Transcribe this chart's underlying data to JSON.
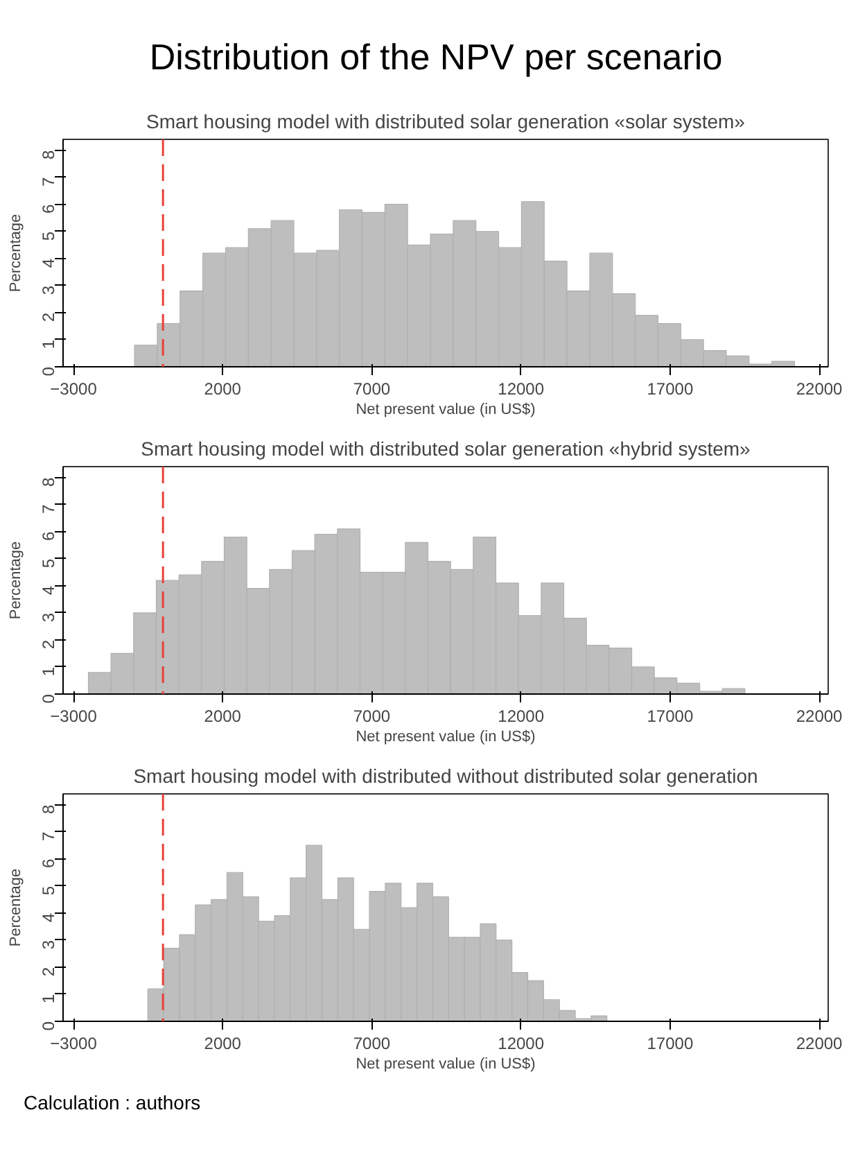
{
  "chart_data": [
    {
      "type": "histogram",
      "title": "Distribution of the NPV per scenario",
      "subtitle": "Smart housing model with distributed solar generation «solar system»",
      "xlabel": "Net present value (in US$)",
      "ylabel": "Percentage",
      "color": "#bebebe",
      "bins": [
        -954,
        -191,
        572,
        1335,
        2098,
        2861,
        3624,
        4387,
        5150,
        5913,
        6676,
        7439,
        8202,
        8965,
        9728,
        10491,
        11254,
        12017,
        12780,
        13543,
        14306,
        15069,
        15832,
        16595,
        17358,
        18121,
        18884,
        19647,
        20410,
        21173
      ],
      "values": [
        0.8,
        1.6,
        2.8,
        4.2,
        4.4,
        5.1,
        5.4,
        4.2,
        4.3,
        5.8,
        5.7,
        6.0,
        4.5,
        4.9,
        5.4,
        5.0,
        4.4,
        6.1,
        3.9,
        2.8,
        4.2,
        2.7,
        1.9,
        1.6,
        1.0,
        0.6,
        0.4,
        0.1,
        0.2
      ],
      "xlim": [
        -3350,
        22300
      ],
      "ylim": [
        0,
        8.4
      ],
      "xticks": [
        -3000,
        2000,
        7000,
        12000,
        17000,
        22000
      ],
      "yticks": [
        0,
        1,
        2,
        3,
        4,
        5,
        6,
        7,
        8
      ],
      "ref_lines": [
        {
          "axis": "x",
          "value": 0,
          "color": "#e8403a",
          "line_style": "dashed"
        }
      ]
    },
    {
      "type": "histogram",
      "title": "Smart housing model with distributed solar generation «hybrid system»",
      "xlabel": "Net present value (in US$)",
      "ylabel": "Percentage",
      "color": "#bebebe",
      "bins": [
        -2502,
        -1743,
        -984,
        -225,
        534,
        1293,
        2052,
        2811,
        3570,
        4329,
        5088,
        5847,
        6606,
        7365,
        8124,
        8883,
        9642,
        10401,
        11160,
        11919,
        12678,
        13437,
        14196,
        14955,
        15714,
        16473,
        17232,
        17991,
        18750,
        19509
      ],
      "values": [
        0.8,
        1.5,
        3.0,
        4.2,
        4.4,
        4.9,
        5.8,
        3.9,
        4.6,
        5.3,
        5.9,
        6.1,
        4.5,
        4.5,
        5.6,
        4.9,
        4.6,
        5.8,
        4.1,
        2.9,
        4.1,
        2.8,
        1.8,
        1.7,
        1.0,
        0.6,
        0.4,
        0.1,
        0.2
      ],
      "xlim": [
        -3350,
        22300
      ],
      "ylim": [
        0,
        8.4
      ],
      "xticks": [
        -3000,
        2000,
        7000,
        12000,
        17000,
        22000
      ],
      "yticks": [
        0,
        1,
        2,
        3,
        4,
        5,
        6,
        7,
        8
      ],
      "ref_lines": [
        {
          "axis": "x",
          "value": 0,
          "color": "#e8403a",
          "line_style": "dashed"
        }
      ]
    },
    {
      "type": "histogram",
      "title": "Smart housing model with distributed without distributed solar generation",
      "xlabel": "Net present value (in US$)",
      "ylabel": "Percentage",
      "color": "#bebebe",
      "bins": [
        -509,
        22,
        553,
        1083,
        1614,
        2145,
        2675,
        3206,
        3737,
        4267,
        4798,
        5329,
        5859,
        6390,
        6921,
        7452,
        7982,
        8513,
        9044,
        9574,
        10105,
        10636,
        11166,
        11697,
        12228,
        12758,
        13289,
        13820,
        14350,
        14881
      ],
      "values": [
        1.2,
        2.7,
        3.2,
        4.3,
        4.5,
        5.5,
        4.6,
        3.7,
        3.9,
        5.3,
        6.5,
        4.5,
        5.3,
        3.4,
        4.8,
        5.1,
        4.2,
        5.1,
        4.6,
        3.1,
        3.1,
        3.6,
        3.0,
        1.8,
        1.5,
        0.8,
        0.4,
        0.1,
        0.2
      ],
      "xlim": [
        -3350,
        22300
      ],
      "ylim": [
        0,
        8.4
      ],
      "xticks": [
        -3000,
        2000,
        7000,
        12000,
        17000,
        22000
      ],
      "yticks": [
        0,
        1,
        2,
        3,
        4,
        5,
        6,
        7,
        8
      ],
      "ref_lines": [
        {
          "axis": "x",
          "value": 0,
          "color": "#e8403a",
          "line_style": "dashed"
        }
      ],
      "annotations": [
        "Calculation : authors"
      ]
    }
  ]
}
